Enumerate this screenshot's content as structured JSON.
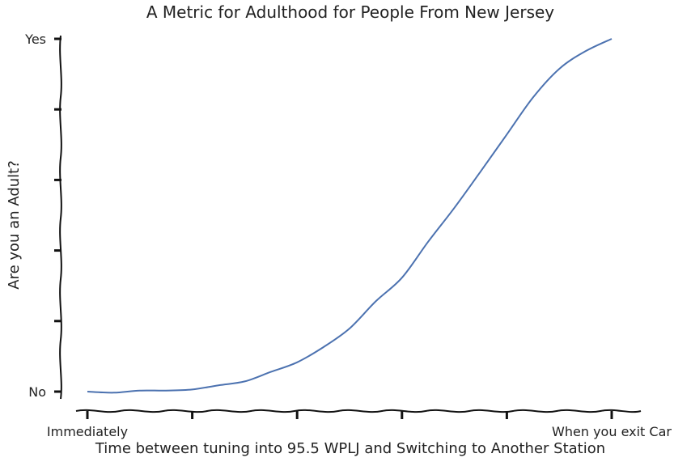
{
  "chart_data": {
    "type": "line",
    "title": "A Metric for Adulthood for People From New Jersey",
    "xlabel": "Time between tuning into 95.5 WPLJ and Switching to Another Station",
    "ylabel": "Are you an Adult?",
    "x_tick_labels": [
      "Immediately",
      "",
      "",
      "",
      "",
      "When you exit Car"
    ],
    "y_tick_labels": [
      "No",
      "",
      "",
      "",
      "",
      "Yes"
    ],
    "xlim": [
      0,
      100
    ],
    "ylim": [
      0,
      100
    ],
    "grid": false,
    "series": [
      {
        "color": "#4c72b0",
        "x": [
          0,
          5,
          10,
          15,
          20,
          25,
          30,
          35,
          40,
          45,
          50,
          55,
          60,
          65,
          70,
          75,
          80,
          85,
          90,
          95,
          100
        ],
        "y": [
          0,
          -0.3,
          0.3,
          0.3,
          0.6,
          1.8,
          2.9,
          5.6,
          8.3,
          12.6,
          17.9,
          25.6,
          32.3,
          42.5,
          52.1,
          62.4,
          72.9,
          83.4,
          91.5,
          96.5,
          100
        ]
      }
    ]
  }
}
